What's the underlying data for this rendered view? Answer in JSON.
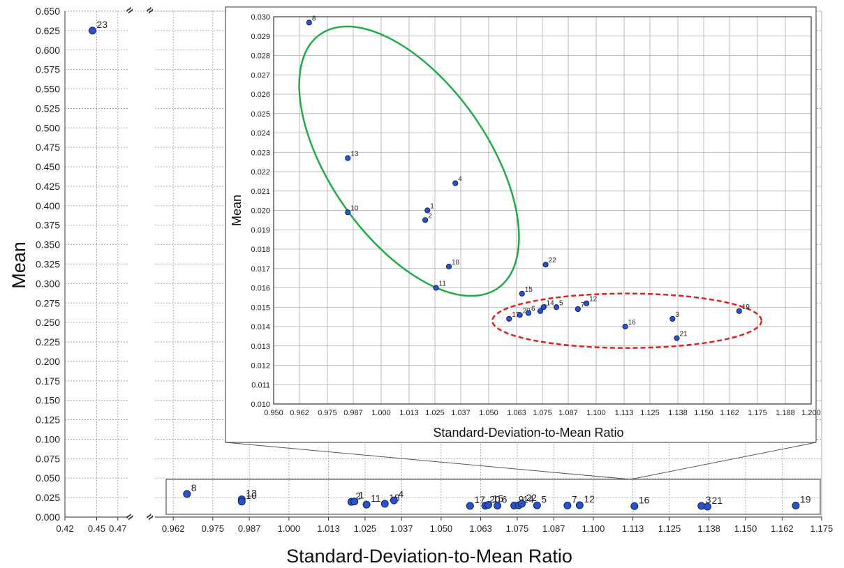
{
  "chart_data": [
    {
      "type": "scatter",
      "panel": "main",
      "xlabel": "Standard-Deviation-to-Mean Ratio",
      "ylabel": "Mean",
      "x_segments": [
        {
          "range": [
            0.42,
            0.48
          ],
          "ticks": [
            "0.42",
            "0.45",
            "0.47"
          ]
        },
        {
          "range": [
            0.956,
            1.175
          ],
          "ticks": [
            "0.962",
            "0.975",
            "0.987",
            "1.000",
            "1.013",
            "1.025",
            "1.037",
            "1.050",
            "1.063",
            "1.075",
            "1.087",
            "1.100",
            "1.113",
            "1.125",
            "1.138",
            "1.150",
            "1.162",
            "1.175"
          ]
        }
      ],
      "ylim": [
        0,
        0.65
      ],
      "yticks": [
        "0.650",
        "0.625",
        "0.600",
        "0.575",
        "0.550",
        "0.525",
        "0.500",
        "0.475",
        "0.450",
        "0.425",
        "0.400",
        "0.375",
        "0.350",
        "0.325",
        "0.300",
        "0.275",
        "0.250",
        "0.225",
        "0.200",
        "0.175",
        "0.150",
        "0.125",
        "0.100",
        "0.075",
        "0.050",
        "0.025",
        "0.000"
      ],
      "grid": true,
      "axis_break_symbol": "≈",
      "points": [
        {
          "label": "23",
          "x": 0.446,
          "y": 0.625
        },
        {
          "label": "8",
          "x": 0.9665,
          "y": 0.0297
        },
        {
          "label": "13",
          "x": 0.9845,
          "y": 0.0227
        },
        {
          "label": "10",
          "x": 0.9845,
          "y": 0.0199
        },
        {
          "label": "2",
          "x": 1.0205,
          "y": 0.0195
        },
        {
          "label": "1",
          "x": 1.0215,
          "y": 0.02
        },
        {
          "label": "11",
          "x": 1.0255,
          "y": 0.016
        },
        {
          "label": "18",
          "x": 1.0315,
          "y": 0.0171
        },
        {
          "label": "4",
          "x": 1.0345,
          "y": 0.0214
        },
        {
          "label": "17",
          "x": 1.0595,
          "y": 0.0144
        },
        {
          "label": "20",
          "x": 1.0645,
          "y": 0.0146
        },
        {
          "label": "15",
          "x": 1.0655,
          "y": 0.0157
        },
        {
          "label": "6",
          "x": 1.0685,
          "y": 0.0147
        },
        {
          "label": "9",
          "x": 1.074,
          "y": 0.0148
        },
        {
          "label": "14",
          "x": 1.0755,
          "y": 0.015
        },
        {
          "label": "22",
          "x": 1.0765,
          "y": 0.0172
        },
        {
          "label": "5",
          "x": 1.0815,
          "y": 0.015
        },
        {
          "label": "7",
          "x": 1.0915,
          "y": 0.0149
        },
        {
          "label": "12",
          "x": 1.0955,
          "y": 0.0152
        },
        {
          "label": "16",
          "x": 1.1135,
          "y": 0.014
        },
        {
          "label": "3",
          "x": 1.1355,
          "y": 0.0144
        },
        {
          "label": "21",
          "x": 1.1375,
          "y": 0.0134
        },
        {
          "label": "19",
          "x": 1.1665,
          "y": 0.0148
        }
      ]
    },
    {
      "type": "scatter",
      "panel": "inset",
      "xlabel": "Standard-Deviation-to-Mean Ratio",
      "ylabel": "Mean",
      "xlim": [
        0.95,
        1.2
      ],
      "xticks": [
        "0.950",
        "0.962",
        "0.975",
        "0.987",
        "1.000",
        "1.013",
        "1.025",
        "1.037",
        "1.050",
        "1.063",
        "1.075",
        "1.087",
        "1.100",
        "1.113",
        "1.125",
        "1.138",
        "1.150",
        "1.162",
        "1.175",
        "1.188",
        "1.200"
      ],
      "ylim": [
        0.01,
        0.03
      ],
      "yticks": [
        "0.030",
        "0.029",
        "0.028",
        "0.027",
        "0.026",
        "0.025",
        "0.024",
        "0.023",
        "0.022",
        "0.021",
        "0.020",
        "0.019",
        "0.018",
        "0.017",
        "0.016",
        "0.015",
        "0.014",
        "0.013",
        "0.012",
        "0.011",
        "0.010"
      ],
      "grid": true,
      "annotations": [
        {
          "shape": "ellipse",
          "style": "solid",
          "color": "#22aa44",
          "encloses": [
            "8",
            "13",
            "10",
            "1",
            "2",
            "4",
            "18",
            "11",
            "15",
            "22"
          ]
        },
        {
          "shape": "ellipse",
          "style": "dashed",
          "color": "#e02020",
          "encloses": [
            "17",
            "20",
            "6",
            "9",
            "14",
            "5",
            "7",
            "12",
            "16",
            "3",
            "21",
            "19"
          ]
        }
      ],
      "points": [
        {
          "label": "8",
          "x": 0.9665,
          "y": 0.0297
        },
        {
          "label": "13",
          "x": 0.9845,
          "y": 0.0227
        },
        {
          "label": "10",
          "x": 0.9845,
          "y": 0.0199
        },
        {
          "label": "2",
          "x": 1.0205,
          "y": 0.0195
        },
        {
          "label": "1",
          "x": 1.0215,
          "y": 0.02
        },
        {
          "label": "11",
          "x": 1.0255,
          "y": 0.016
        },
        {
          "label": "18",
          "x": 1.0315,
          "y": 0.0171
        },
        {
          "label": "4",
          "x": 1.0345,
          "y": 0.0214
        },
        {
          "label": "17",
          "x": 1.0595,
          "y": 0.0144
        },
        {
          "label": "20",
          "x": 1.0645,
          "y": 0.0146
        },
        {
          "label": "15",
          "x": 1.0655,
          "y": 0.0157
        },
        {
          "label": "6",
          "x": 1.0685,
          "y": 0.0147
        },
        {
          "label": "9",
          "x": 1.074,
          "y": 0.0148
        },
        {
          "label": "14",
          "x": 1.0755,
          "y": 0.015
        },
        {
          "label": "22",
          "x": 1.0765,
          "y": 0.0172
        },
        {
          "label": "5",
          "x": 1.0815,
          "y": 0.015
        },
        {
          "label": "7",
          "x": 1.0915,
          "y": 0.0149
        },
        {
          "label": "12",
          "x": 1.0955,
          "y": 0.0152
        },
        {
          "label": "16",
          "x": 1.1135,
          "y": 0.014
        },
        {
          "label": "3",
          "x": 1.1355,
          "y": 0.0144
        },
        {
          "label": "21",
          "x": 1.1375,
          "y": 0.0134
        },
        {
          "label": "19",
          "x": 1.1665,
          "y": 0.0148
        }
      ]
    }
  ],
  "colors": {
    "point_fill": "#2a52c9",
    "point_stroke": "#0d2466",
    "grid": "#9a9a9a",
    "frame": "#555555",
    "cluster_a": "#22aa44",
    "cluster_b": "#e02020"
  }
}
